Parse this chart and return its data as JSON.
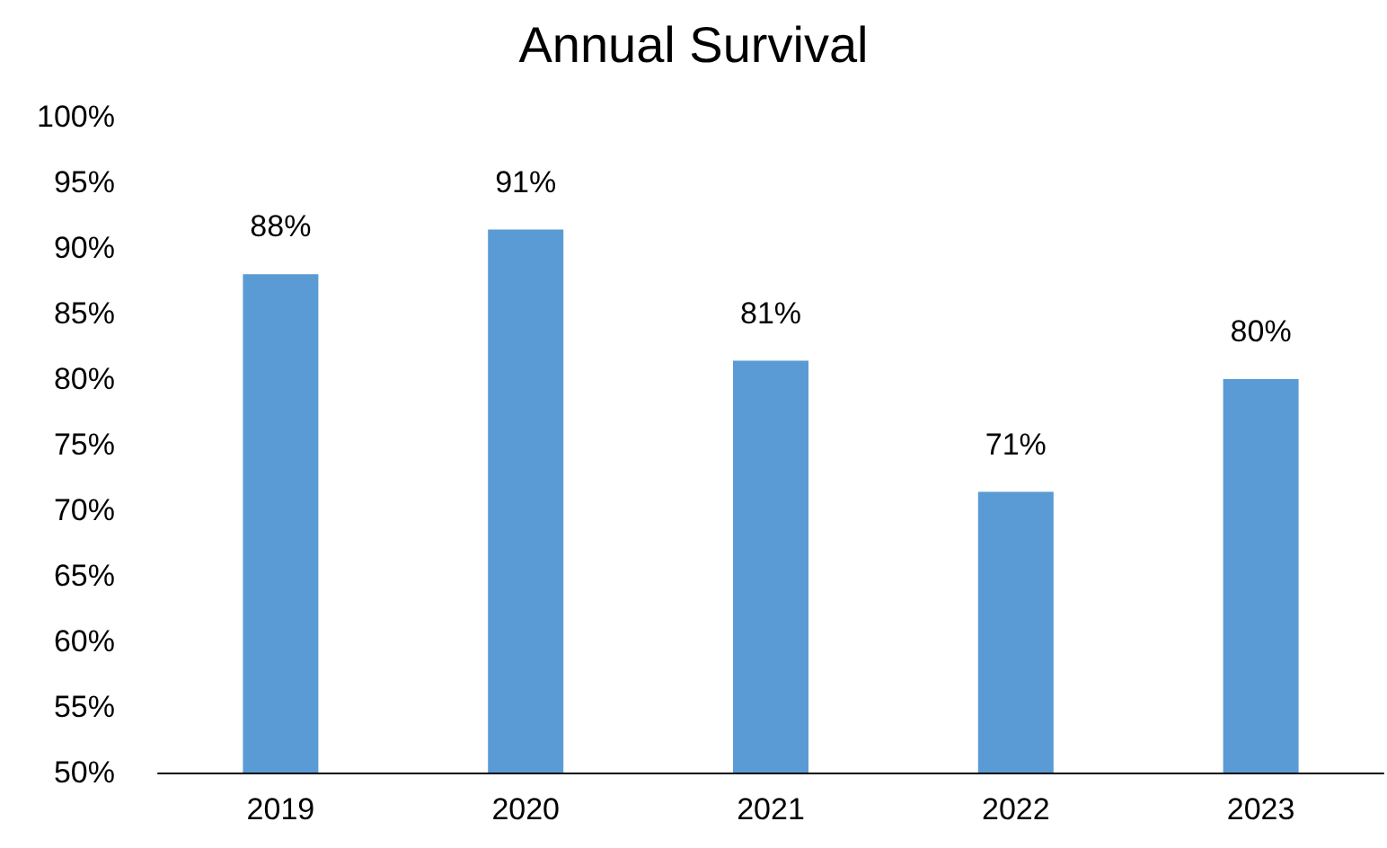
{
  "chart_data": {
    "type": "bar",
    "title": "Annual Survival",
    "categories": [
      "2019",
      "2020",
      "2021",
      "2022",
      "2023"
    ],
    "values": [
      88,
      91.4,
      81.4,
      71.4,
      80
    ],
    "value_labels": [
      "88%",
      "91%",
      "81%",
      "71%",
      "80%"
    ],
    "color": "#5b9bd5",
    "ylim": [
      50,
      100
    ],
    "yticks": [
      {
        "value": 50,
        "label": "50%"
      },
      {
        "value": 55,
        "label": "55%"
      },
      {
        "value": 60,
        "label": "60%"
      },
      {
        "value": 65,
        "label": "65%"
      },
      {
        "value": 70,
        "label": "70%"
      },
      {
        "value": 75,
        "label": "75%"
      },
      {
        "value": 80,
        "label": "80%"
      },
      {
        "value": 85,
        "label": "85%"
      },
      {
        "value": 90,
        "label": "90%"
      },
      {
        "value": 95,
        "label": "95%"
      },
      {
        "value": 100,
        "label": "100%"
      }
    ],
    "grid": false
  }
}
